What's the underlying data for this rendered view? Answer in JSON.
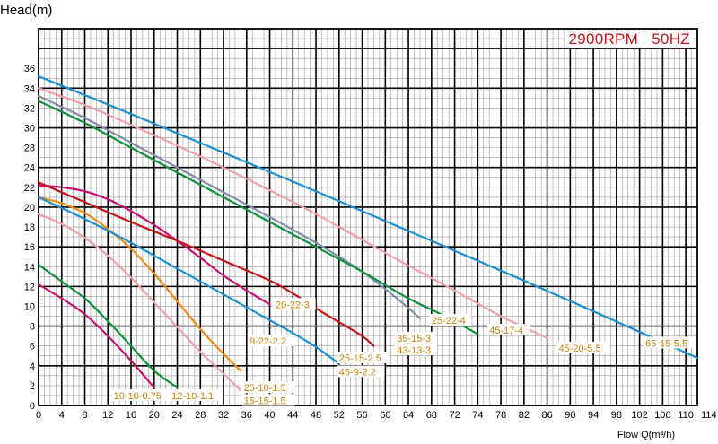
{
  "chart_data": {
    "type": "line",
    "ylabel": "Head(m)",
    "xlabel": "Flow Q(m³/h)",
    "annotation": "2900RPM   50HZ",
    "xlim": [
      0,
      114
    ],
    "ylim": [
      0,
      38
    ],
    "x_ticks": [
      0,
      4,
      8,
      12,
      16,
      20,
      24,
      28,
      32,
      36,
      40,
      44,
      48,
      52,
      56,
      60,
      64,
      68,
      72,
      74,
      78,
      82,
      86,
      90,
      94,
      98,
      102,
      106,
      110,
      114
    ],
    "y_ticks": [
      0,
      2,
      4,
      6,
      8,
      10,
      12,
      14,
      16,
      18,
      20,
      22,
      24,
      28,
      30,
      32,
      34,
      36
    ],
    "grid": true,
    "series": [
      {
        "name": "10-10-0.75",
        "color": "#c8106e",
        "x": [
          0,
          4,
          8,
          12,
          16,
          20
        ],
        "y": [
          12.2,
          10.8,
          9.2,
          7.0,
          4.5,
          1.8
        ],
        "label_at": [
          13,
          1.0
        ]
      },
      {
        "name": "12-10-1.1",
        "color": "#10903c",
        "x": [
          0,
          4,
          8,
          12,
          16,
          20,
          24
        ],
        "y": [
          14.2,
          12.5,
          10.8,
          8.5,
          6.0,
          3.5,
          1.8
        ],
        "label_at": [
          23,
          1.0
        ]
      },
      {
        "name": "25-10-1.5",
        "color": "#f0a0a8",
        "x": [
          0,
          4,
          8,
          12,
          16,
          20,
          24,
          28,
          32,
          35
        ],
        "y": [
          19.3,
          18.3,
          16.9,
          15.1,
          12.9,
          10.4,
          7.9,
          5.4,
          3.2,
          1.5
        ],
        "label_at": [
          35.5,
          1.8
        ]
      },
      {
        "name": "15-15-1.5",
        "color": "#f0a0a8",
        "label_at": [
          35.5,
          0.5
        ]
      },
      {
        "name": "9-22-2.2",
        "color": "#f08c14",
        "x": [
          0,
          4,
          8,
          12,
          16,
          20,
          24,
          28,
          32,
          35
        ],
        "y": [
          21.0,
          20.4,
          19.4,
          17.8,
          15.8,
          13.3,
          10.5,
          7.7,
          5.2,
          3.5
        ],
        "label_at": [
          36.5,
          6.5
        ]
      },
      {
        "name": "20-22-3",
        "color": "#c8106e",
        "x": [
          0,
          4,
          8,
          12,
          16,
          20,
          24,
          28,
          32,
          36,
          40
        ],
        "y": [
          22.2,
          22.0,
          21.6,
          20.8,
          19.6,
          18.2,
          16.6,
          14.9,
          13.1,
          11.6,
          10.2
        ],
        "label_at": [
          41,
          10.2
        ]
      },
      {
        "name": "25-15-2.5",
        "color": "#1a90d0",
        "x": [
          0,
          8,
          16,
          24,
          32,
          40,
          44,
          48,
          52
        ],
        "y": [
          21.0,
          18.8,
          16.4,
          13.8,
          11.2,
          8.6,
          7.3,
          5.9,
          4.2
        ],
        "label_at": [
          52,
          4.8
        ]
      },
      {
        "name": "45-9-2.2",
        "color": "#1a90d0",
        "label_at": [
          52,
          3.4
        ]
      },
      {
        "name": "35-15-3",
        "color": "#c41418",
        "x": [
          0,
          8,
          16,
          24,
          32,
          40,
          44,
          48,
          52,
          56,
          58
        ],
        "y": [
          22.5,
          20.5,
          18.5,
          16.6,
          14.6,
          12.6,
          11.3,
          9.8,
          8.4,
          7.0,
          6.0
        ],
        "label_at": [
          62,
          6.8
        ]
      },
      {
        "name": "43-13-3",
        "color": "#c41418",
        "label_at": [
          62,
          5.6
        ]
      },
      {
        "name": "25-22-4",
        "color": "#8090a8",
        "x": [
          0,
          8,
          16,
          24,
          32,
          40,
          48,
          56,
          62,
          66
        ],
        "y": [
          31.2,
          29.0,
          26.5,
          24.0,
          21.5,
          19.0,
          16.4,
          13.5,
          10.8,
          8.8
        ],
        "label_at": [
          68,
          8.6
        ]
      },
      {
        "name": "45-17-4",
        "color": "#10903c",
        "x": [
          0,
          8,
          16,
          24,
          32,
          40,
          48,
          56,
          64,
          70,
          76
        ],
        "y": [
          30.7,
          28.5,
          26.0,
          23.5,
          21.0,
          18.5,
          16.0,
          13.5,
          10.8,
          9.1,
          7.2
        ],
        "label_at": [
          78,
          7.6
        ]
      },
      {
        "name": "45-20-5.5",
        "color": "#f0a0a8",
        "x": [
          0,
          8,
          16,
          24,
          32,
          40,
          48,
          56,
          64,
          72,
          80,
          88
        ],
        "y": [
          32.0,
          30.3,
          28.3,
          26.2,
          24.0,
          21.7,
          19.3,
          16.7,
          14.1,
          11.6,
          9.0,
          6.8
        ],
        "label_at": [
          90,
          5.8
        ]
      },
      {
        "name": "65-15-5.5",
        "color": "#1a90d0",
        "x": [
          0,
          16,
          32,
          48,
          64,
          80,
          96,
          114
        ],
        "y": [
          33.2,
          29.4,
          25.5,
          21.6,
          17.6,
          13.6,
          9.5,
          4.8
        ],
        "label_at": [
          105,
          6.3
        ]
      }
    ]
  }
}
